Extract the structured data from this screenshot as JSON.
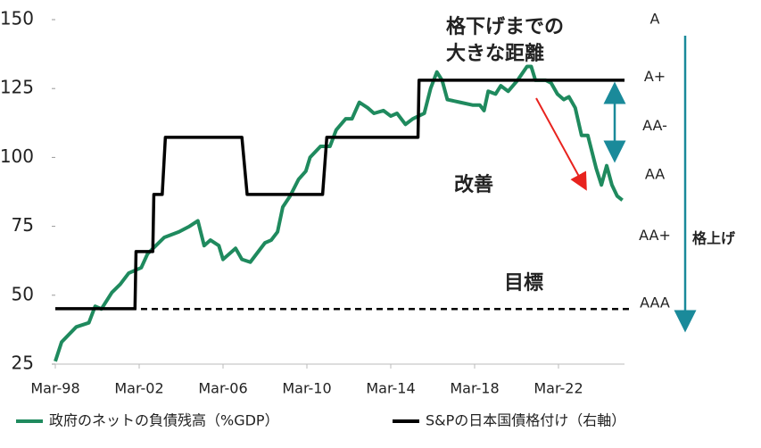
{
  "chart_data": {
    "type": "line",
    "xlim": [
      1998.2,
      2025.35
    ],
    "xticks": [
      {
        "value": 1998.2,
        "label": "Mar-98"
      },
      {
        "value": 2002.2,
        "label": "Mar-02"
      },
      {
        "value": 2006.2,
        "label": "Mar-06"
      },
      {
        "value": 2010.2,
        "label": "Mar-10"
      },
      {
        "value": 2014.2,
        "label": "Mar-14"
      },
      {
        "value": 2018.2,
        "label": "Mar-18"
      },
      {
        "value": 2022.2,
        "label": "Mar-22"
      }
    ],
    "ylim": [
      25,
      150
    ],
    "yticks": [
      25,
      50,
      75,
      100,
      125,
      150
    ],
    "y2lim": [
      0.03,
      6.06
    ],
    "y2ticks": [
      {
        "value": 1.09,
        "label": "AAA"
      },
      {
        "value": 2.27,
        "label": "AA+"
      },
      {
        "value": 3.34,
        "label": "AA"
      },
      {
        "value": 4.19,
        "label": "AA-"
      },
      {
        "value": 5.05,
        "label": "A+"
      },
      {
        "value": 6.06,
        "label": "A"
      }
    ],
    "grid": false,
    "legend": "bottom",
    "reference_line": {
      "value": 45,
      "label": "目標"
    },
    "annotations": [
      "格下げまでの",
      "大きな距離",
      "改善",
      "格上げ"
    ],
    "series": [
      {
        "name": "政府のネットの負債残高（%GDP）",
        "color": "#1f8a5e",
        "x": [
          1998.2,
          1998.5,
          1999.2,
          1999.8,
          2000.1,
          2000.4,
          2000.9,
          2001.3,
          2001.7,
          2002.3,
          2002.6,
          2003.0,
          2003.4,
          2004.1,
          2004.6,
          2005.0,
          2005.3,
          2005.6,
          2006.0,
          2006.2,
          2006.8,
          2007.1,
          2007.5,
          2007.9,
          2008.2,
          2008.5,
          2008.8,
          2009.05,
          2009.4,
          2009.8,
          2010.15,
          2010.35,
          2010.85,
          2011.3,
          2011.6,
          2012.05,
          2012.35,
          2012.7,
          2013.1,
          2013.4,
          2013.85,
          2014.2,
          2014.5,
          2014.9,
          2015.25,
          2015.8,
          2016.1,
          2016.4,
          2016.65,
          2016.9,
          2017.5,
          2018.1,
          2018.45,
          2018.65,
          2018.85,
          2019.2,
          2019.45,
          2019.8,
          2020.25,
          2020.7,
          2020.9,
          2021.1,
          2021.6,
          2021.85,
          2022.15,
          2022.45,
          2022.7,
          2023.0,
          2023.3,
          2023.6,
          2024.0,
          2024.25,
          2024.5,
          2024.75,
          2025.0,
          2025.25
        ],
        "values": [
          26,
          33,
          38.5,
          40,
          46,
          45,
          51,
          54,
          58,
          60,
          65,
          68,
          71,
          73,
          75,
          77,
          68,
          70,
          68,
          63,
          67,
          63,
          62,
          66,
          69,
          70,
          73,
          82,
          86,
          92,
          95,
          100,
          104,
          104,
          110,
          114,
          114,
          120,
          118,
          116,
          117,
          115,
          116,
          112,
          114,
          116,
          125,
          131,
          128,
          121,
          120,
          119,
          119,
          117,
          124,
          123,
          126,
          124,
          128,
          133,
          133,
          128,
          128,
          127,
          123,
          121,
          122,
          118,
          108,
          108,
          96,
          90,
          97,
          90,
          86,
          84.5
        ]
      },
      {
        "name": "S&Pの日本国債格付け（右軸）",
        "color": "#000000",
        "axis": "y2",
        "x": [
          1998.2,
          2002.0,
          2002.05,
          2002.85,
          2002.9,
          2003.3,
          2003.45,
          2007.1,
          2007.35,
          2010.95,
          2011.15,
          2015.5,
          2015.55,
          2025.35
        ],
        "values": [
          1,
          1,
          2,
          2,
          3,
          3,
          4,
          4,
          3,
          3,
          4,
          4,
          5,
          5
        ]
      }
    ]
  }
}
